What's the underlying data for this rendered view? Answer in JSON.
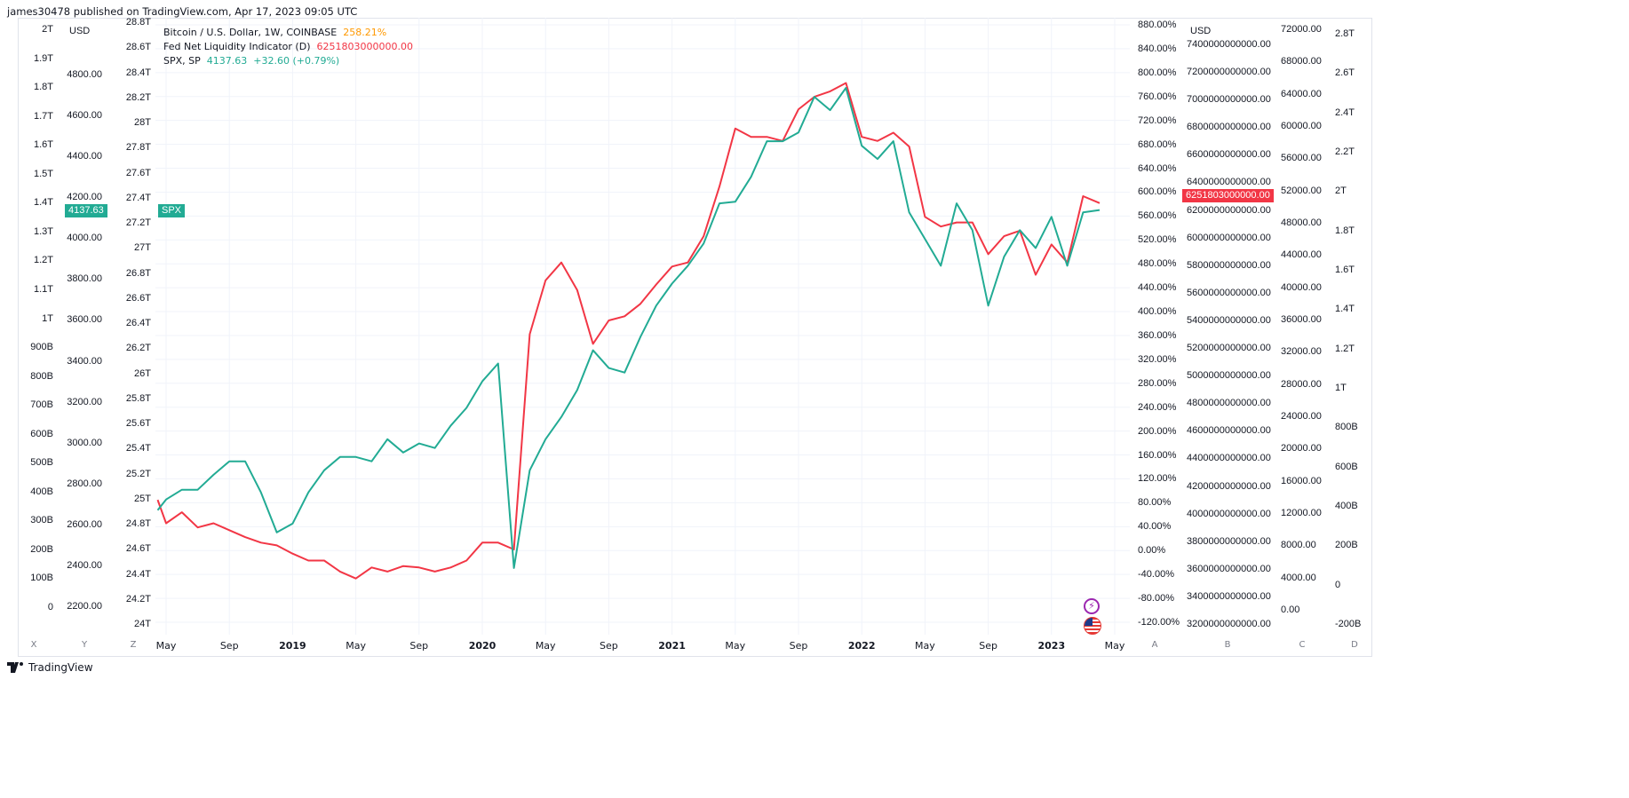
{
  "published": "james30478 published on TradingView.com, Apr 17, 2023 09:05 UTC",
  "legend": {
    "btc": {
      "label": "Bitcoin / U.S. Dollar, 1W, COINBASE",
      "value": "258.21%",
      "color": "#ff9800"
    },
    "fed": {
      "label": "Fed Net Liquidity Indicator (D)",
      "value": "6251803000000.00",
      "color": "#f23645"
    },
    "spx": {
      "label": "SPX, SP",
      "value": "4137.63",
      "change": "+32.60 (+0.79%)",
      "color": "#22ab94"
    }
  },
  "price_tags": {
    "spx_value": "4137.63",
    "spx_name": "SPX",
    "fed_value": "6251803000000.00"
  },
  "axes": {
    "left_1": [
      "2T",
      "1.9T",
      "1.8T",
      "1.7T",
      "1.6T",
      "1.5T",
      "1.4T",
      "1.3T",
      "1.2T",
      "1.1T",
      "1T",
      "900B",
      "800B",
      "700B",
      "600B",
      "500B",
      "400B",
      "300B",
      "200B",
      "100B",
      "0"
    ],
    "left_2_currency": "USD",
    "left_2": [
      "4800.00",
      "4600.00",
      "4400.00",
      "4200.00",
      "4000.00",
      "3800.00",
      "3600.00",
      "3400.00",
      "3200.00",
      "3000.00",
      "2800.00",
      "2600.00",
      "2400.00",
      "2200.00"
    ],
    "left_3": [
      "28.8T",
      "28.6T",
      "28.4T",
      "28.2T",
      "28T",
      "27.8T",
      "27.6T",
      "27.4T",
      "27.2T",
      "27T",
      "26.8T",
      "26.6T",
      "26.4T",
      "26.2T",
      "26T",
      "25.8T",
      "25.6T",
      "25.4T",
      "25.2T",
      "25T",
      "24.8T",
      "24.6T",
      "24.4T",
      "24.2T",
      "24T"
    ],
    "right_1": [
      "880.00%",
      "840.00%",
      "800.00%",
      "760.00%",
      "720.00%",
      "680.00%",
      "640.00%",
      "600.00%",
      "560.00%",
      "520.00%",
      "480.00%",
      "440.00%",
      "400.00%",
      "360.00%",
      "320.00%",
      "280.00%",
      "240.00%",
      "200.00%",
      "160.00%",
      "120.00%",
      "80.00%",
      "40.00%",
      "0.00%",
      "-40.00%",
      "-80.00%",
      "-120.00%"
    ],
    "right_2_currency": "USD",
    "right_2": [
      "7400000000000.00",
      "7200000000000.00",
      "7000000000000.00",
      "6800000000000.00",
      "6600000000000.00",
      "6400000000000.00",
      "6200000000000.00",
      "6000000000000.00",
      "5800000000000.00",
      "5600000000000.00",
      "5400000000000.00",
      "5200000000000.00",
      "5000000000000.00",
      "4800000000000.00",
      "4600000000000.00",
      "4400000000000.00",
      "4200000000000.00",
      "4000000000000.00",
      "3800000000000.00",
      "3600000000000.00",
      "3400000000000.00",
      "3200000000000.00"
    ],
    "right_3": [
      "72000.00",
      "68000.00",
      "64000.00",
      "60000.00",
      "56000.00",
      "52000.00",
      "48000.00",
      "44000.00",
      "40000.00",
      "36000.00",
      "32000.00",
      "28000.00",
      "24000.00",
      "20000.00",
      "16000.00",
      "12000.00",
      "8000.00",
      "4000.00",
      "0.00"
    ],
    "right_4": [
      "2.8T",
      "2.6T",
      "2.4T",
      "2.2T",
      "2T",
      "1.8T",
      "1.6T",
      "1.4T",
      "1.2T",
      "1T",
      "800B",
      "600B",
      "400B",
      "200B",
      "0",
      "-200B"
    ],
    "x_labels": [
      {
        "label": "May",
        "year": false
      },
      {
        "label": "Sep",
        "year": false
      },
      {
        "label": "2019",
        "year": true
      },
      {
        "label": "May",
        "year": false
      },
      {
        "label": "Sep",
        "year": false
      },
      {
        "label": "2020",
        "year": true
      },
      {
        "label": "May",
        "year": false
      },
      {
        "label": "Sep",
        "year": false
      },
      {
        "label": "2021",
        "year": true
      },
      {
        "label": "May",
        "year": false
      },
      {
        "label": "Sep",
        "year": false
      },
      {
        "label": "2022",
        "year": true
      },
      {
        "label": "May",
        "year": false
      },
      {
        "label": "Sep",
        "year": false
      },
      {
        "label": "2023",
        "year": true
      },
      {
        "label": "May",
        "year": false
      }
    ]
  },
  "scale_buttons": {
    "left": [
      "X",
      "Y",
      "Z"
    ],
    "right": [
      "A",
      "B",
      "C",
      "D"
    ]
  },
  "footer": {
    "brand": "TradingView"
  },
  "chart_data": {
    "type": "line",
    "grid": true,
    "legend_placement": "top-left",
    "x": [
      "2018-04-15",
      "2018-05",
      "2018-06",
      "2018-07",
      "2018-08",
      "2018-09",
      "2018-10",
      "2018-11",
      "2018-12",
      "2019-01",
      "2019-02",
      "2019-03",
      "2019-04",
      "2019-05",
      "2019-06",
      "2019-07",
      "2019-08",
      "2019-09",
      "2019-10",
      "2019-11",
      "2019-12",
      "2020-01",
      "2020-02",
      "2020-03",
      "2020-04",
      "2020-05",
      "2020-06",
      "2020-07",
      "2020-08",
      "2020-09",
      "2020-10",
      "2020-11",
      "2020-12",
      "2021-01",
      "2021-02",
      "2021-03",
      "2021-04",
      "2021-05",
      "2021-06",
      "2021-07",
      "2021-08",
      "2021-09",
      "2021-10",
      "2021-11",
      "2021-12",
      "2022-01",
      "2022-02",
      "2022-03",
      "2022-04",
      "2022-05",
      "2022-06",
      "2022-07",
      "2022-08",
      "2022-09",
      "2022-10",
      "2022-11",
      "2022-12",
      "2023-01",
      "2023-02",
      "2023-03",
      "2023-04"
    ],
    "series": [
      {
        "name": "SPX, SP",
        "axis": "USD (left)",
        "color": "#22ab94",
        "values": [
          2670,
          2722,
          2770,
          2770,
          2843,
          2909,
          2909,
          2757,
          2561,
          2604,
          2757,
          2865,
          2930,
          2930,
          2909,
          3017,
          2952,
          2996,
          2974,
          3083,
          3170,
          3300,
          3387,
          2387,
          2865,
          3017,
          3126,
          3257,
          3452,
          3365,
          3343,
          3517,
          3670,
          3778,
          3865,
          3974,
          4170,
          4178,
          4300,
          4474,
          4474,
          4517,
          4691,
          4626,
          4735,
          4452,
          4387,
          4474,
          4126,
          3996,
          3865,
          4170,
          4039,
          3670,
          3909,
          4039,
          3952,
          4104,
          3865,
          4126,
          4137.63
        ]
      },
      {
        "name": "Fed Net Liquidity Indicator (D)",
        "axis": "USD (right)",
        "unit": "trillions",
        "color": "#f23645",
        "values": [
          4.1,
          3.93,
          4.01,
          3.9,
          3.93,
          3.88,
          3.83,
          3.79,
          3.77,
          3.71,
          3.66,
          3.66,
          3.58,
          3.53,
          3.61,
          3.58,
          3.62,
          3.61,
          3.58,
          3.61,
          3.66,
          3.79,
          3.79,
          3.74,
          5.3,
          5.69,
          5.82,
          5.62,
          5.23,
          5.4,
          5.43,
          5.52,
          5.66,
          5.79,
          5.82,
          6.01,
          6.37,
          6.79,
          6.73,
          6.73,
          6.7,
          6.93,
          7.02,
          7.06,
          7.12,
          6.73,
          6.7,
          6.76,
          6.66,
          6.15,
          6.08,
          6.11,
          6.11,
          5.88,
          6.01,
          6.05,
          5.73,
          5.95,
          5.82,
          6.3,
          6.25
        ]
      }
    ],
    "ylim_spx": [
      2200,
      4800
    ],
    "ylim_fed_trillions": [
      3.2,
      7.4
    ]
  }
}
